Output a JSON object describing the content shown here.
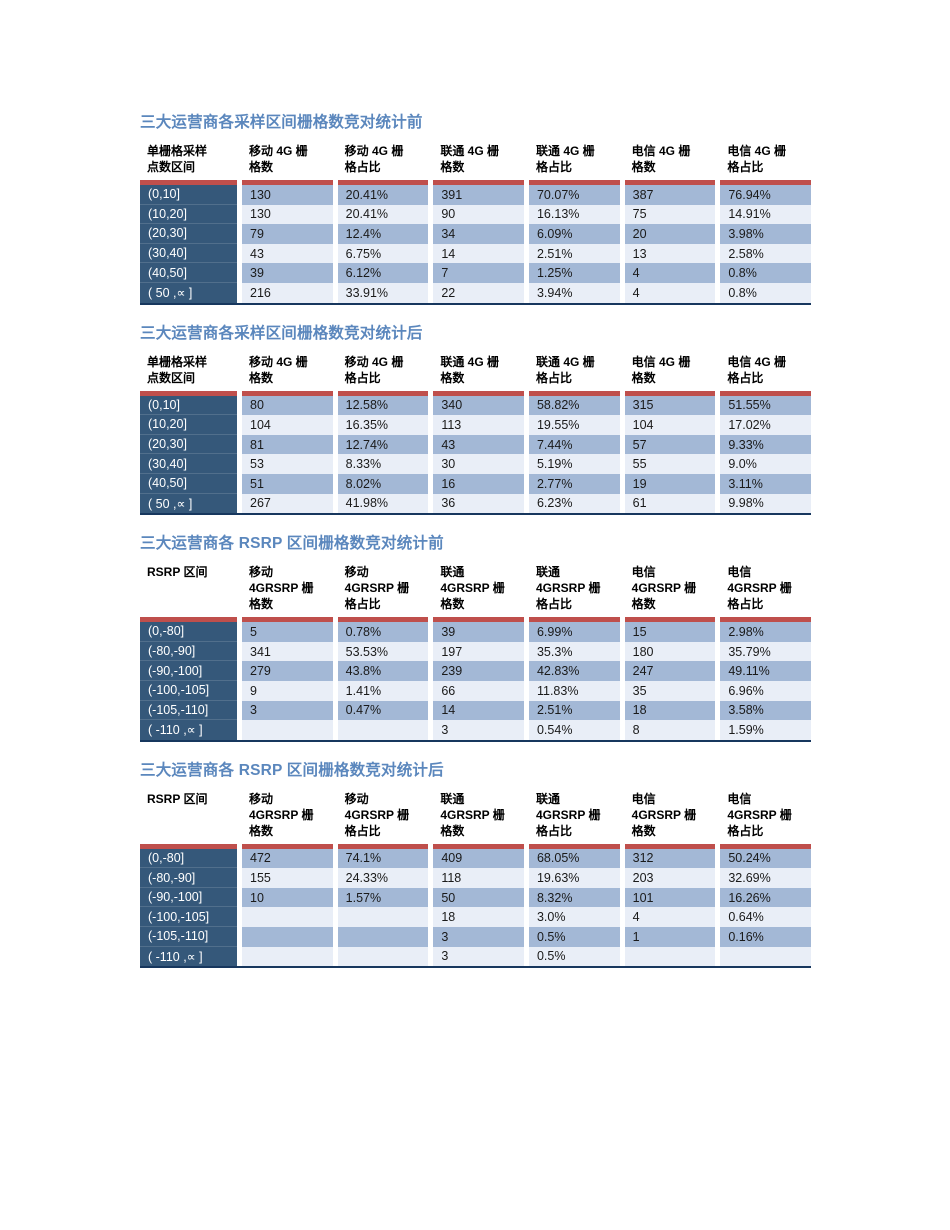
{
  "colors": {
    "title_blue": "#5b87bd",
    "label_column_bg": "#35587a",
    "band_row_bg": "#a3b8d6",
    "light_row_bg": "#e9eef7",
    "red_divider": "#bf4f4c",
    "bottom_border": "#17375e"
  },
  "tables": [
    {
      "title": "三大运营商各采样区间栅格数竞对统计前",
      "row_header": "单栅格采样\n点数区间",
      "columns": [
        "移动 4G 栅\n格数",
        "移动 4G 栅\n格占比",
        "联通 4G 栅\n格数",
        "联通 4G 栅\n格占比",
        "电信 4G 栅\n格数",
        "电信 4G 栅\n格占比"
      ],
      "rows": [
        {
          "label": "(0,10]",
          "values": [
            "130",
            "20.41%",
            "391",
            "70.07%",
            "387",
            "76.94%"
          ]
        },
        {
          "label": "(10,20]",
          "values": [
            "130",
            "20.41%",
            "90",
            "16.13%",
            "75",
            "14.91%"
          ]
        },
        {
          "label": "(20,30]",
          "values": [
            "79",
            "12.4%",
            "34",
            "6.09%",
            "20",
            "3.98%"
          ]
        },
        {
          "label": "(30,40]",
          "values": [
            "43",
            "6.75%",
            "14",
            "2.51%",
            "13",
            "2.58%"
          ]
        },
        {
          "label": "(40,50]",
          "values": [
            "39",
            "6.12%",
            "7",
            "1.25%",
            "4",
            "0.8%"
          ]
        },
        {
          "label": "( 50 ,∝  ]",
          "values": [
            "216",
            "33.91%",
            "22",
            "3.94%",
            "4",
            "0.8%"
          ]
        }
      ]
    },
    {
      "title": "三大运营商各采样区间栅格数竞对统计后",
      "row_header": "单栅格采样\n点数区间",
      "columns": [
        "移动 4G 栅\n格数",
        "移动 4G 栅\n格占比",
        "联通 4G 栅\n格数",
        "联通 4G 栅\n格占比",
        "电信 4G 栅\n格数",
        "电信 4G 栅\n格占比"
      ],
      "rows": [
        {
          "label": "(0,10]",
          "values": [
            "80",
            "12.58%",
            "340",
            "58.82%",
            "315",
            "51.55%"
          ]
        },
        {
          "label": "(10,20]",
          "values": [
            "104",
            "16.35%",
            "113",
            "19.55%",
            "104",
            "17.02%"
          ]
        },
        {
          "label": "(20,30]",
          "values": [
            "81",
            "12.74%",
            "43",
            "7.44%",
            "57",
            "9.33%"
          ]
        },
        {
          "label": "(30,40]",
          "values": [
            "53",
            "8.33%",
            "30",
            "5.19%",
            "55",
            "9.0%"
          ]
        },
        {
          "label": "(40,50]",
          "values": [
            "51",
            "8.02%",
            "16",
            "2.77%",
            "19",
            "3.11%"
          ]
        },
        {
          "label": "( 50 ,∝  ]",
          "values": [
            "267",
            "41.98%",
            "36",
            "6.23%",
            "61",
            "9.98%"
          ]
        }
      ]
    },
    {
      "title": "三大运营商各 RSRP 区间栅格数竞对统计前",
      "row_header": "RSRP 区间",
      "columns": [
        "移动\n4GRSRP 栅\n格数",
        "移动\n4GRSRP 栅\n格占比",
        "联通\n4GRSRP 栅\n格数",
        "联通\n4GRSRP 栅\n格占比",
        "电信\n4GRSRP 栅\n格数",
        "电信\n4GRSRP 栅\n格占比"
      ],
      "rows": [
        {
          "label": "(0,-80]",
          "values": [
            "5",
            "0.78%",
            "39",
            "6.99%",
            "15",
            "2.98%"
          ]
        },
        {
          "label": "(-80,-90]",
          "values": [
            "341",
            "53.53%",
            "197",
            "35.3%",
            "180",
            "35.79%"
          ]
        },
        {
          "label": "(-90,-100]",
          "values": [
            "279",
            "43.8%",
            "239",
            "42.83%",
            "247",
            "49.11%"
          ]
        },
        {
          "label": "(-100,-105]",
          "values": [
            "9",
            "1.41%",
            "66",
            "11.83%",
            "35",
            "6.96%"
          ]
        },
        {
          "label": "(-105,-110]",
          "values": [
            "3",
            "0.47%",
            "14",
            "2.51%",
            "18",
            "3.58%"
          ]
        },
        {
          "label": "( -110 ,∝  ]",
          "values": [
            "",
            "",
            "3",
            "0.54%",
            "8",
            "1.59%"
          ]
        }
      ]
    },
    {
      "title": "三大运营商各 RSRP 区间栅格数竞对统计后",
      "row_header": "RSRP 区间",
      "columns": [
        "移动\n4GRSRP 栅\n格数",
        "移动\n4GRSRP 栅\n格占比",
        "联通\n4GRSRP 栅\n格数",
        "联通\n4GRSRP 栅\n格占比",
        "电信\n4GRSRP 栅\n格数",
        "电信\n4GRSRP 栅\n格占比"
      ],
      "rows": [
        {
          "label": "(0,-80]",
          "values": [
            "472",
            "74.1%",
            "409",
            "68.05%",
            "312",
            "50.24%"
          ]
        },
        {
          "label": "(-80,-90]",
          "values": [
            "155",
            "24.33%",
            "118",
            "19.63%",
            "203",
            "32.69%"
          ]
        },
        {
          "label": "(-90,-100]",
          "values": [
            "10",
            "1.57%",
            "50",
            "8.32%",
            "101",
            "16.26%"
          ]
        },
        {
          "label": "(-100,-105]",
          "values": [
            "",
            "",
            "18",
            "3.0%",
            "4",
            "0.64%"
          ]
        },
        {
          "label": "(-105,-110]",
          "values": [
            "",
            "",
            "3",
            "0.5%",
            "1",
            "0.16%"
          ]
        },
        {
          "label": "( -110 ,∝  ]",
          "values": [
            "",
            "",
            "3",
            "0.5%",
            "",
            ""
          ]
        }
      ]
    }
  ]
}
